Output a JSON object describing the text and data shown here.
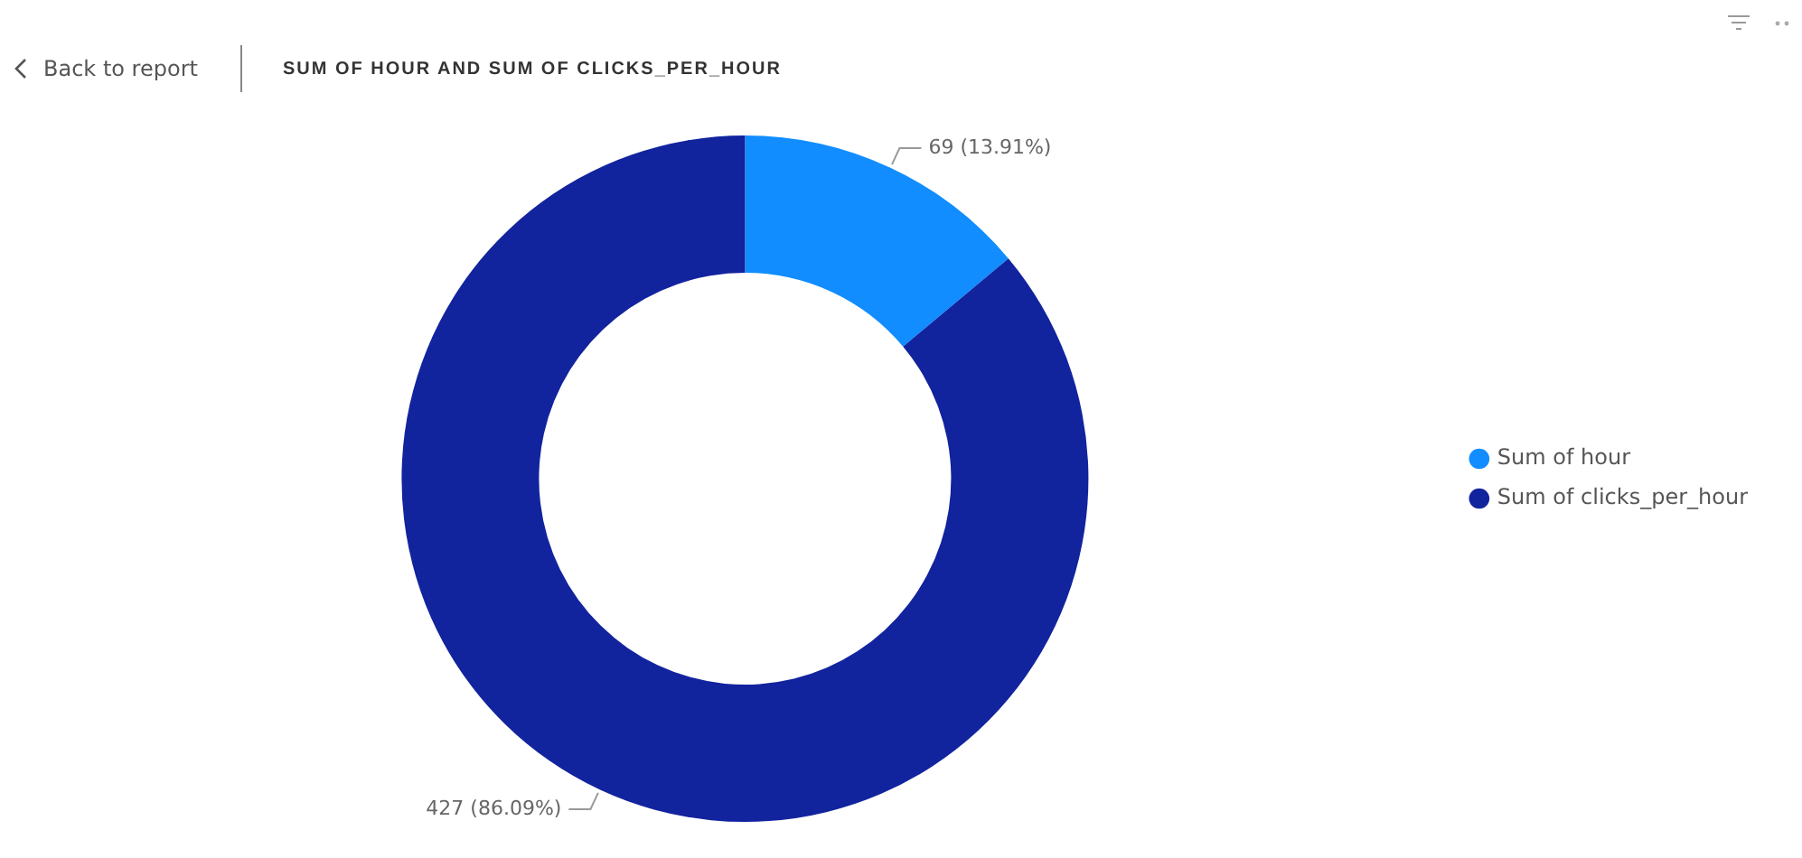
{
  "chart_data": {
    "type": "donut",
    "title": "SUM OF HOUR AND SUM OF CLICKS_PER_HOUR",
    "annotations": [
      "Back to report"
    ],
    "categories": [
      "Sum of hour",
      "Sum of clicks_per_hour"
    ],
    "values": [
      69,
      427
    ],
    "colors": [
      "#118dff",
      "#12239e"
    ],
    "value_labels": [
      "69 (13.91%)",
      "427 (86.09%)"
    ],
    "legend": "right"
  }
}
